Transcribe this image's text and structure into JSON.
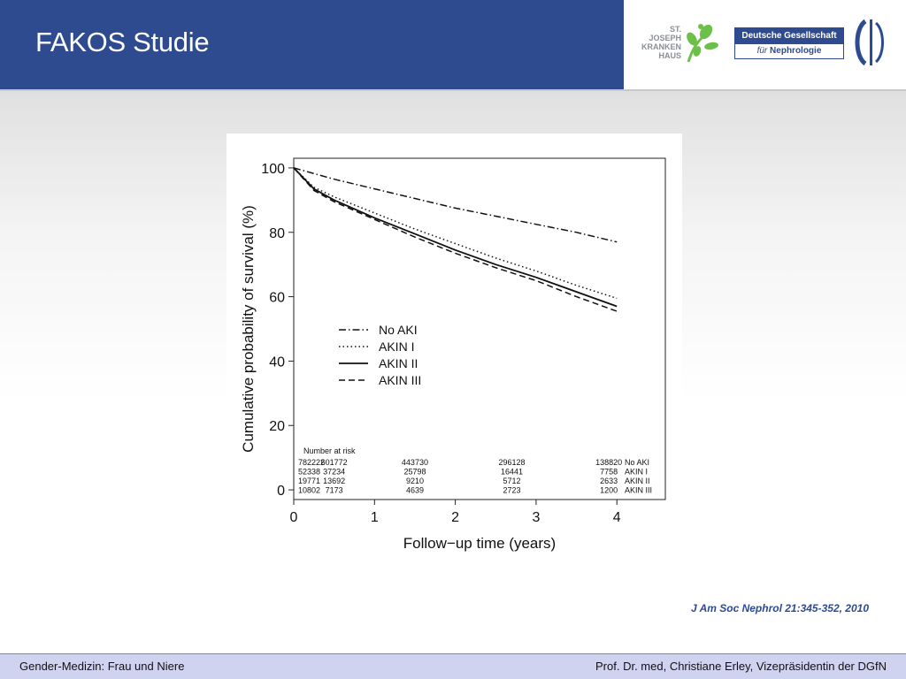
{
  "header": {
    "title": "FAKOS Studie",
    "logo_hospital_lines": [
      "ST.",
      "JOSEPH",
      "KRANKEN",
      "HAUS"
    ],
    "logo_society_top": "Deutsche Gesellschaft",
    "logo_society_bottom_prefix": "für",
    "logo_society_bottom_name": "Nephrologie"
  },
  "citation": "J Am Soc Nephrol 21:345-352, 2010",
  "footer": {
    "left": "Gender-Medizin: Frau und Niere",
    "right": "Prof. Dr. med, Christiane Erley, Vizepräsidentin der DGfN"
  },
  "colors": {
    "brand_blue": "#2e4b90",
    "footer_bg": "#d0d3f0",
    "leaf_green": "#6cc04a"
  },
  "chart_data": {
    "type": "line",
    "xlabel": "Follow−up time (years)",
    "ylabel": "Cumulative probability of survival (%)",
    "xlim": [
      0,
      4.6
    ],
    "ylim": [
      -3,
      103
    ],
    "xticks": [
      0,
      1,
      2,
      3,
      4
    ],
    "yticks": [
      0,
      20,
      40,
      60,
      80,
      100
    ],
    "legend_position": "center-left",
    "series": [
      {
        "name": "No AKI",
        "style": "dashdot",
        "x": [
          0,
          0.5,
          1,
          1.5,
          2,
          2.5,
          3,
          3.5,
          4
        ],
        "y": [
          100,
          96.5,
          93.5,
          90.5,
          87.5,
          85,
          82.5,
          80,
          77
        ]
      },
      {
        "name": "AKIN I",
        "style": "dotted",
        "x": [
          0,
          0.25,
          0.5,
          1,
          1.5,
          2,
          2.5,
          3,
          3.5,
          4
        ],
        "y": [
          100,
          94,
          91,
          86,
          81,
          76.5,
          72,
          68,
          63.5,
          59.5
        ]
      },
      {
        "name": "AKIN II",
        "style": "solid",
        "x": [
          0,
          0.25,
          0.5,
          1,
          1.5,
          2,
          2.5,
          3,
          3.5,
          4
        ],
        "y": [
          100,
          93.5,
          90,
          84.5,
          79.5,
          74.5,
          70,
          66,
          61.5,
          57
        ]
      },
      {
        "name": "AKIN III",
        "style": "dashed",
        "x": [
          0,
          0.25,
          0.5,
          1,
          1.5,
          2,
          2.5,
          3,
          3.5,
          4
        ],
        "y": [
          100,
          93,
          89.5,
          84,
          78.5,
          73.5,
          69,
          65,
          60,
          55.5
        ]
      }
    ],
    "risk_table": {
      "title": "Number at risk",
      "x": [
        0,
        0.5,
        1.5,
        2.7,
        3.9
      ],
      "rows": [
        {
          "label": "No AKI",
          "values": [
            "782222",
            "601772",
            "443730",
            "296128",
            "138820"
          ]
        },
        {
          "label": "AKIN I",
          "values": [
            "52338",
            "37234",
            "25798",
            "16441",
            "7758"
          ]
        },
        {
          "label": "AKIN II",
          "values": [
            "19771",
            "13692",
            "9210",
            "5712",
            "2633"
          ]
        },
        {
          "label": "AKIN III",
          "values": [
            "10802",
            "7173",
            "4639",
            "2723",
            "1200"
          ]
        }
      ]
    }
  }
}
